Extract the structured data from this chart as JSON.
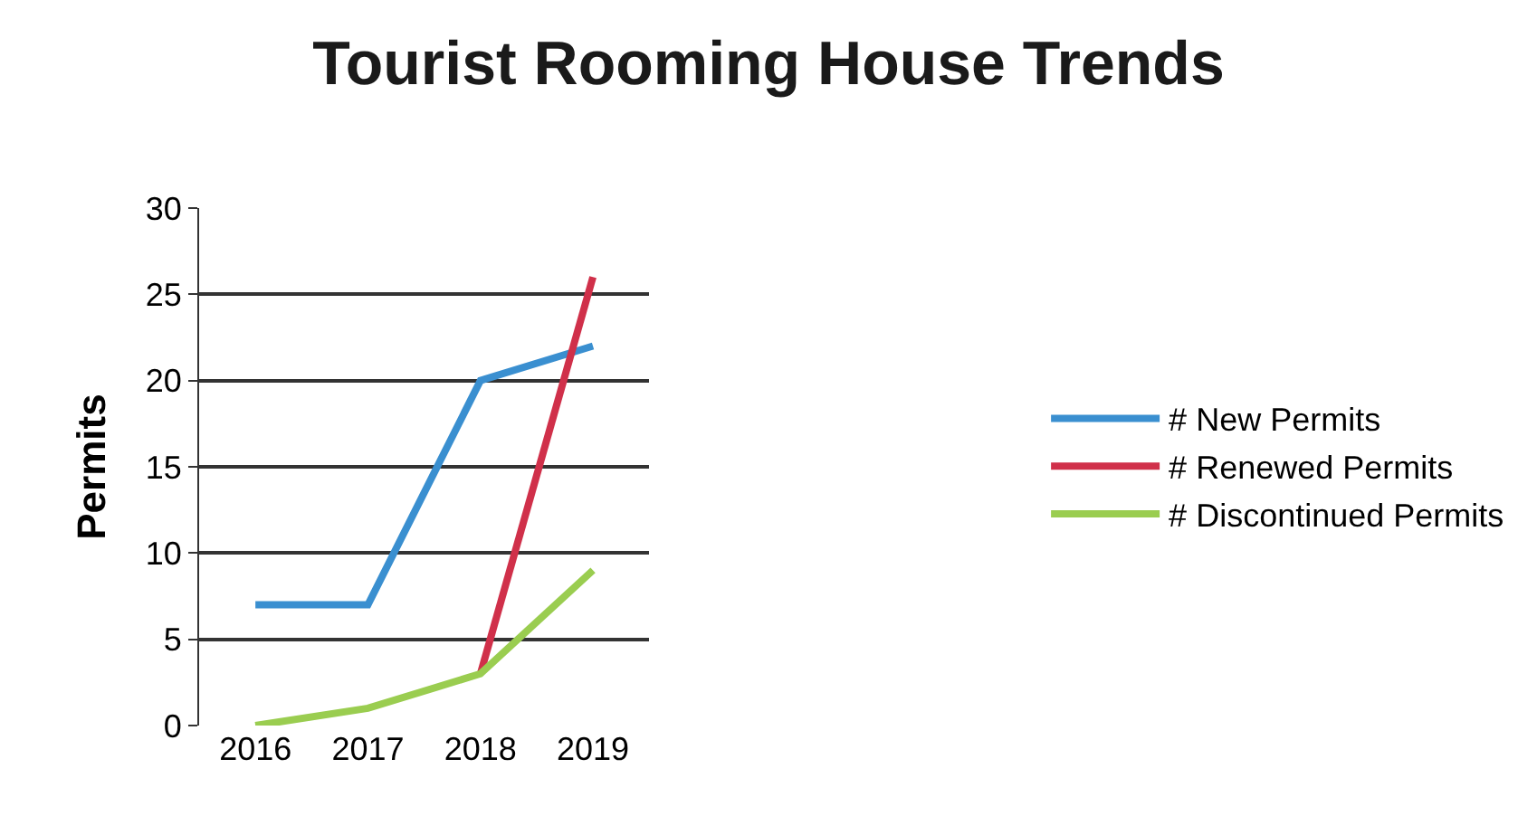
{
  "chart_data": {
    "type": "line",
    "title": "Tourist Rooming House Trends",
    "ylabel": "Permits",
    "categories": [
      "2016",
      "2017",
      "2018",
      "2019"
    ],
    "series": [
      {
        "name": "# New Permits",
        "color": "#3a8fd0",
        "values": [
          7,
          7,
          20,
          22
        ]
      },
      {
        "name": "# Renewed Permits",
        "color": "#d0304a",
        "values": [
          null,
          null,
          3,
          26
        ]
      },
      {
        "name": "# Discontinued Permits",
        "color": "#9acd50",
        "values": [
          0,
          1,
          3,
          9
        ]
      }
    ],
    "ylim": [
      0,
      30
    ],
    "yticks": [
      0,
      5,
      10,
      15,
      20,
      25,
      30
    ],
    "grid": "y",
    "legend": "right",
    "marker": "none",
    "line_style": "solid"
  }
}
